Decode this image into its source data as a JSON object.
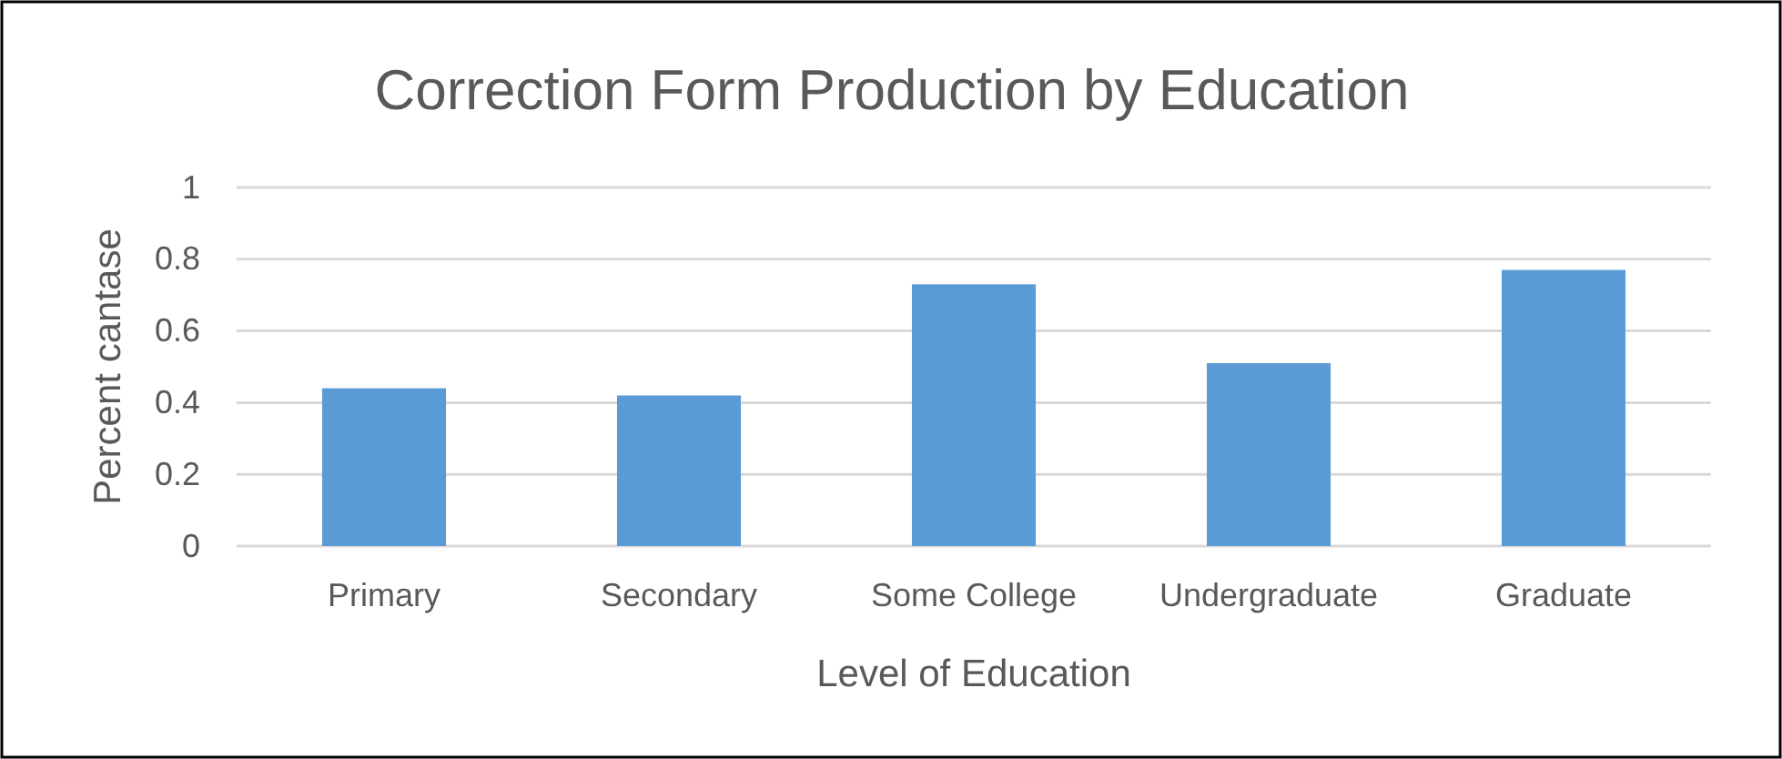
{
  "chart_data": {
    "type": "bar",
    "title": "Correction Form Production by Education",
    "xlabel": "Level of Education",
    "ylabel": "Percent cantase",
    "categories": [
      "Primary",
      "Secondary",
      "Some College",
      "Undergraduate",
      "Graduate"
    ],
    "values": [
      0.44,
      0.42,
      0.73,
      0.51,
      0.77
    ],
    "color": "#5b9bd5",
    "ylim": [
      0,
      1
    ],
    "yticks": [
      0,
      0.2,
      0.4,
      0.6,
      0.8,
      1
    ],
    "grid": "y"
  }
}
